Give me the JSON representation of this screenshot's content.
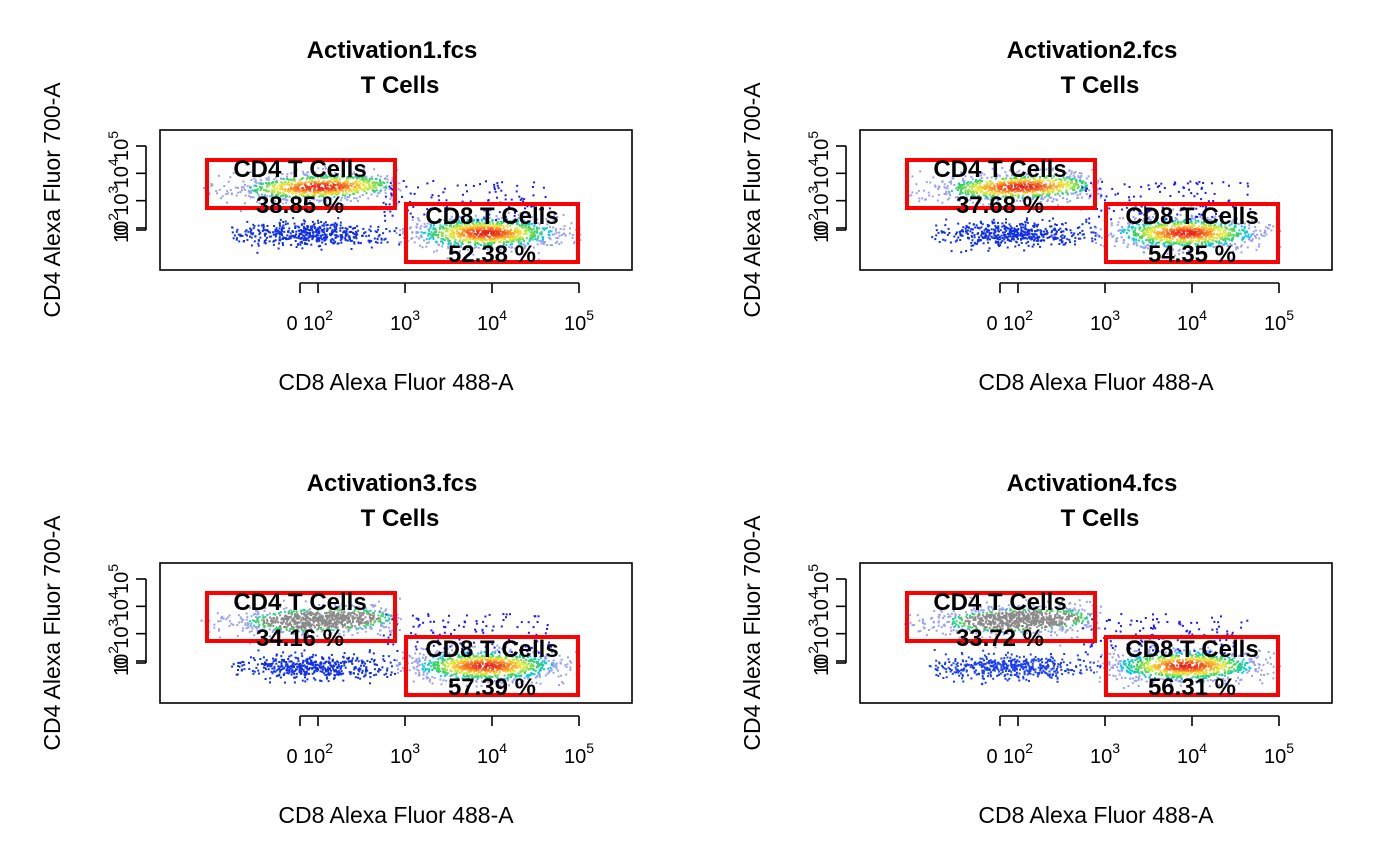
{
  "chart_data": [
    {
      "type": "scatter",
      "title": "Activation1.fcs",
      "subtitle": "T Cells",
      "xlabel": "CD8 Alexa Fluor 488-A",
      "ylabel": "CD4 Alexa Fluor 700-A",
      "x_ticks": [
        {
          "value": 0,
          "label": "0"
        },
        {
          "value": 100,
          "label": "10",
          "exp": "2"
        },
        {
          "value": 1000,
          "label": "10",
          "exp": "3"
        },
        {
          "value": 10000,
          "label": "10",
          "exp": "4"
        },
        {
          "value": 100000,
          "label": "10",
          "exp": "5"
        }
      ],
      "y_ticks": [
        {
          "value": 0,
          "label": "0"
        },
        {
          "value": 100,
          "label": "10",
          "exp": "2"
        },
        {
          "value": 1000,
          "label": "10",
          "exp": "3"
        },
        {
          "value": 10000,
          "label": "10",
          "exp": "4"
        },
        {
          "value": 100000,
          "label": "10",
          "exp": "5"
        }
      ],
      "gates": [
        {
          "name": "CD4 T Cells",
          "percent": "38.85 %",
          "color": "#ff0000"
        },
        {
          "name": "CD8 T Cells",
          "percent": "52.38 %",
          "color": "#ff0000"
        }
      ]
    },
    {
      "type": "scatter",
      "title": "Activation2.fcs",
      "subtitle": "T Cells",
      "xlabel": "CD8 Alexa Fluor 488-A",
      "ylabel": "CD4 Alexa Fluor 700-A",
      "x_ticks": [
        {
          "value": 0,
          "label": "0"
        },
        {
          "value": 100,
          "label": "10",
          "exp": "2"
        },
        {
          "value": 1000,
          "label": "10",
          "exp": "3"
        },
        {
          "value": 10000,
          "label": "10",
          "exp": "4"
        },
        {
          "value": 100000,
          "label": "10",
          "exp": "5"
        }
      ],
      "y_ticks": [
        {
          "value": 0,
          "label": "0"
        },
        {
          "value": 100,
          "label": "10",
          "exp": "2"
        },
        {
          "value": 1000,
          "label": "10",
          "exp": "3"
        },
        {
          "value": 10000,
          "label": "10",
          "exp": "4"
        },
        {
          "value": 100000,
          "label": "10",
          "exp": "5"
        }
      ],
      "gates": [
        {
          "name": "CD4 T Cells",
          "percent": "37.68 %",
          "color": "#ff0000"
        },
        {
          "name": "CD8 T Cells",
          "percent": "54.35 %",
          "color": "#ff0000"
        }
      ]
    },
    {
      "type": "scatter",
      "title": "Activation3.fcs",
      "subtitle": "T Cells",
      "xlabel": "CD8 Alexa Fluor 488-A",
      "ylabel": "CD4 Alexa Fluor 700-A",
      "x_ticks": [
        {
          "value": 0,
          "label": "0"
        },
        {
          "value": 100,
          "label": "10",
          "exp": "2"
        },
        {
          "value": 1000,
          "label": "10",
          "exp": "3"
        },
        {
          "value": 10000,
          "label": "10",
          "exp": "4"
        },
        {
          "value": 100000,
          "label": "10",
          "exp": "5"
        }
      ],
      "y_ticks": [
        {
          "value": 0,
          "label": "0"
        },
        {
          "value": 100,
          "label": "10",
          "exp": "2"
        },
        {
          "value": 1000,
          "label": "10",
          "exp": "3"
        },
        {
          "value": 10000,
          "label": "10",
          "exp": "4"
        },
        {
          "value": 100000,
          "label": "10",
          "exp": "5"
        }
      ],
      "gates": [
        {
          "name": "CD4 T Cells",
          "percent": "34.16 %",
          "color": "#ff0000"
        },
        {
          "name": "CD8 T Cells",
          "percent": "57.39 %",
          "color": "#ff0000"
        }
      ]
    },
    {
      "type": "scatter",
      "title": "Activation4.fcs",
      "subtitle": "T Cells",
      "xlabel": "CD8 Alexa Fluor 488-A",
      "ylabel": "CD4 Alexa Fluor 700-A",
      "x_ticks": [
        {
          "value": 0,
          "label": "0"
        },
        {
          "value": 100,
          "label": "10",
          "exp": "2"
        },
        {
          "value": 1000,
          "label": "10",
          "exp": "3"
        },
        {
          "value": 10000,
          "label": "10",
          "exp": "4"
        },
        {
          "value": 100000,
          "label": "10",
          "exp": "5"
        }
      ],
      "y_ticks": [
        {
          "value": 0,
          "label": "0"
        },
        {
          "value": 100,
          "label": "10",
          "exp": "2"
        },
        {
          "value": 1000,
          "label": "10",
          "exp": "3"
        },
        {
          "value": 10000,
          "label": "10",
          "exp": "4"
        },
        {
          "value": 100000,
          "label": "10",
          "exp": "5"
        }
      ],
      "gates": [
        {
          "name": "CD4 T Cells",
          "percent": "33.72 %",
          "color": "#ff0000"
        },
        {
          "name": "CD8 T Cells",
          "percent": "56.31 %",
          "color": "#ff0000"
        }
      ]
    }
  ],
  "colors": {
    "gate": "#ff0000",
    "density_low": "#0000ff",
    "density_high": "#ff0000"
  }
}
